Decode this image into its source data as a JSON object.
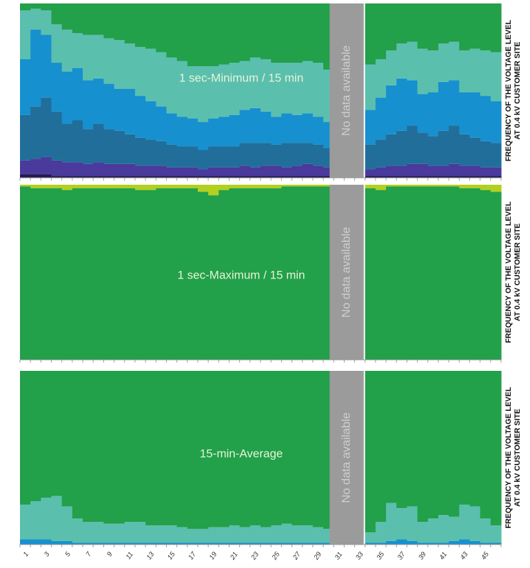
{
  "chart_data": [
    {
      "type": "bar",
      "stacked": true,
      "title": "1 sec-Minimum / 15 min",
      "annotation": "No data available",
      "ylabel": [
        "FREQUENCY OF THE VOLTAGE LEVEL",
        "AT 0.4 kV CUSTOMER SITE"
      ],
      "ylim": [
        0,
        100
      ],
      "series": [
        {
          "color": "#221c4e",
          "values": [
            2,
            2,
            2,
            1,
            1,
            1,
            1,
            1,
            1,
            1,
            1,
            1,
            1,
            1,
            1,
            1,
            1,
            1,
            1,
            1,
            1,
            1,
            1,
            1,
            1,
            1,
            1,
            1,
            1,
            1,
            null,
            null,
            null,
            1,
            1,
            1,
            1,
            1,
            1,
            1,
            1,
            1,
            1,
            1,
            1,
            1
          ]
        },
        {
          "color": "#4a3a9c",
          "values": [
            8,
            9,
            10,
            9,
            8,
            8,
            7,
            8,
            7,
            7,
            7,
            6,
            6,
            6,
            5,
            5,
            5,
            4,
            5,
            5,
            5,
            6,
            5,
            6,
            6,
            5,
            6,
            7,
            6,
            5,
            null,
            null,
            null,
            4,
            5,
            6,
            6,
            7,
            7,
            6,
            6,
            7,
            6,
            6,
            5,
            5
          ]
        },
        {
          "color": "#216e9a",
          "values": [
            26,
            30,
            34,
            28,
            22,
            24,
            20,
            22,
            20,
            19,
            17,
            16,
            15,
            14,
            13,
            12,
            12,
            11,
            12,
            12,
            12,
            13,
            14,
            13,
            12,
            14,
            13,
            12,
            12,
            11,
            null,
            null,
            null,
            14,
            16,
            18,
            20,
            22,
            18,
            17,
            20,
            22,
            18,
            16,
            15,
            14
          ]
        },
        {
          "color": "#1790cf",
          "values": [
            32,
            44,
            36,
            28,
            30,
            30,
            28,
            26,
            26,
            24,
            26,
            24,
            22,
            20,
            18,
            17,
            16,
            16,
            16,
            17,
            18,
            19,
            20,
            18,
            16,
            17,
            16,
            17,
            16,
            15,
            null,
            null,
            null,
            20,
            24,
            28,
            30,
            26,
            22,
            25,
            28,
            26,
            24,
            26,
            26,
            24
          ]
        },
        {
          "color": "#5bbfae",
          "values": [
            28,
            12,
            14,
            22,
            24,
            20,
            26,
            25,
            26,
            28,
            26,
            28,
            30,
            31,
            32,
            32,
            30,
            32,
            30,
            30,
            30,
            28,
            29,
            30,
            31,
            29,
            30,
            30,
            31,
            30,
            null,
            null,
            null,
            26,
            22,
            20,
            20,
            22,
            26,
            24,
            22,
            22,
            24,
            25,
            26,
            28
          ]
        },
        {
          "color": "#22a04a",
          "values": [
            4,
            3,
            4,
            12,
            15,
            17,
            18,
            18,
            20,
            21,
            23,
            25,
            26,
            28,
            31,
            33,
            36,
            36,
            36,
            35,
            34,
            33,
            31,
            32,
            34,
            34,
            34,
            33,
            34,
            38,
            null,
            null,
            null,
            35,
            32,
            27,
            23,
            22,
            26,
            27,
            23,
            22,
            27,
            26,
            27,
            28
          ]
        }
      ]
    },
    {
      "type": "bar",
      "stacked": true,
      "title": "1 sec-Maximum / 15 min",
      "annotation": "No data available",
      "ylabel": [
        "FREQUENCY OF THE VOLTAGE LEVEL",
        "AT 0.4 kV CUSTOMER SITE"
      ],
      "ylim": [
        0,
        100
      ],
      "series": [
        {
          "color": "#22a04a",
          "values": [
            99,
            98,
            98,
            98,
            97,
            98,
            98,
            98,
            98,
            98,
            98,
            97,
            97,
            98,
            98,
            98,
            98,
            96,
            94,
            97,
            98,
            98,
            98,
            98,
            98,
            99,
            99,
            99,
            99,
            99,
            null,
            null,
            null,
            98,
            97,
            99,
            99,
            99,
            99,
            99,
            99,
            99,
            98,
            98,
            97,
            96
          ]
        },
        {
          "color": "#b3cf1f",
          "values": [
            1,
            2,
            2,
            2,
            3,
            2,
            2,
            2,
            2,
            2,
            2,
            3,
            3,
            2,
            2,
            2,
            2,
            4,
            6,
            3,
            2,
            2,
            2,
            2,
            2,
            1,
            1,
            1,
            1,
            1,
            null,
            null,
            null,
            2,
            3,
            1,
            1,
            1,
            1,
            1,
            1,
            1,
            2,
            2,
            3,
            4
          ]
        }
      ]
    },
    {
      "type": "bar",
      "stacked": true,
      "title": "15-min-Average",
      "annotation": "No data available",
      "ylabel": [
        "FREQUENCY OF THE VOLTAGE LEVEL",
        "AT 0.4 kV CUSTOMER SITE"
      ],
      "ylim": [
        0,
        100
      ],
      "categories": [
        "1",
        null,
        "3",
        null,
        "5",
        null,
        "7",
        null,
        "9",
        null,
        "11",
        null,
        "13",
        null,
        "15",
        null,
        "17",
        null,
        "19",
        null,
        "21",
        null,
        "23",
        null,
        "25",
        null,
        "27",
        null,
        "29",
        null,
        "31",
        null,
        "33",
        null,
        "35",
        null,
        "37",
        null,
        "39",
        null,
        "41",
        null,
        "43",
        null,
        "45",
        null
      ],
      "series": [
        {
          "color": "#1790cf",
          "values": [
            3,
            3,
            3,
            2,
            2,
            1,
            1,
            1,
            1,
            1,
            1,
            1,
            1,
            1,
            1,
            1,
            1,
            1,
            1,
            1,
            1,
            1,
            1,
            1,
            1,
            1,
            1,
            1,
            1,
            1,
            null,
            null,
            null,
            1,
            1,
            2,
            3,
            2,
            1,
            1,
            1,
            2,
            3,
            2,
            1,
            1
          ]
        },
        {
          "color": "#5bbfae",
          "values": [
            20,
            22,
            24,
            26,
            20,
            14,
            12,
            12,
            11,
            11,
            12,
            12,
            10,
            10,
            10,
            9,
            8,
            8,
            9,
            9,
            10,
            9,
            10,
            9,
            10,
            11,
            10,
            10,
            9,
            8,
            null,
            null,
            null,
            6,
            12,
            22,
            18,
            20,
            12,
            14,
            16,
            14,
            20,
            20,
            14,
            10
          ]
        },
        {
          "color": "#22a04a",
          "values": [
            77,
            75,
            73,
            72,
            78,
            85,
            87,
            87,
            88,
            88,
            87,
            87,
            89,
            89,
            89,
            90,
            91,
            91,
            90,
            90,
            89,
            90,
            89,
            90,
            89,
            88,
            89,
            89,
            90,
            91,
            null,
            null,
            null,
            93,
            87,
            76,
            79,
            78,
            87,
            85,
            83,
            84,
            77,
            78,
            85,
            89
          ]
        }
      ]
    }
  ]
}
